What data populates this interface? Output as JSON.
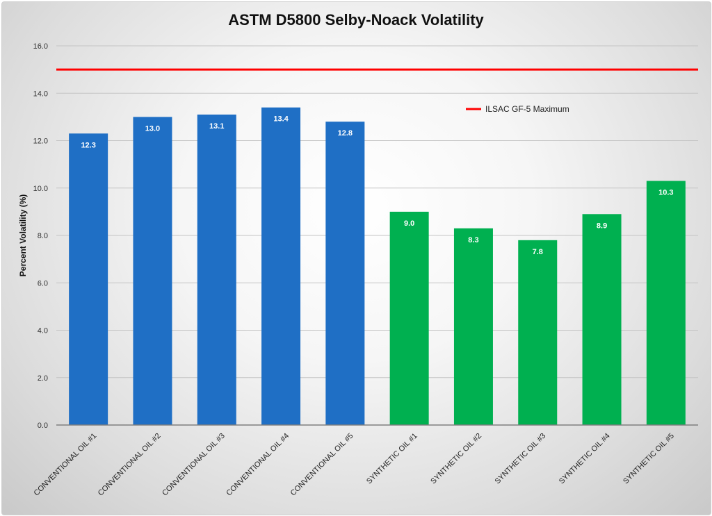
{
  "chart_data": {
    "type": "bar",
    "title": "ASTM D5800 Selby-Noack Volatility",
    "xlabel": "",
    "ylabel": "Percent Volatility (%)",
    "ylim": [
      0,
      16
    ],
    "yticks": [
      "0.0",
      "2.0",
      "4.0",
      "6.0",
      "8.0",
      "10.0",
      "12.0",
      "14.0",
      "16.0"
    ],
    "grid": true,
    "legend_position": "top-right",
    "categories": [
      "CONVENTIONAL OIL #1",
      "CONVENTIONAL OIL #2",
      "CONVENTIONAL OIL #3",
      "CONVENTIONAL OIL #4",
      "CONVENTIONAL OIL #5",
      "SYNTHETIC OIL #1",
      "SYNTHETIC OIL #2",
      "SYNTHETIC OIL #3",
      "SYNTHETIC OIL #4",
      "SYNTHETIC OIL #5"
    ],
    "values": [
      12.3,
      13.0,
      13.1,
      13.4,
      12.8,
      9.0,
      8.3,
      7.8,
      8.9,
      10.3
    ],
    "value_labels": [
      "12.3",
      "13.0",
      "13.1",
      "13.4",
      "12.8",
      "9.0",
      "8.3",
      "7.8",
      "8.9",
      "10.3"
    ],
    "bar_colors": [
      "#1f6fc5",
      "#1f6fc5",
      "#1f6fc5",
      "#1f6fc5",
      "#1f6fc5",
      "#00b050",
      "#00b050",
      "#00b050",
      "#00b050",
      "#00b050"
    ],
    "reference_line": {
      "name": "ILSAC GF-5 Maximum",
      "value": 15.0,
      "color": "#ff0000"
    }
  }
}
